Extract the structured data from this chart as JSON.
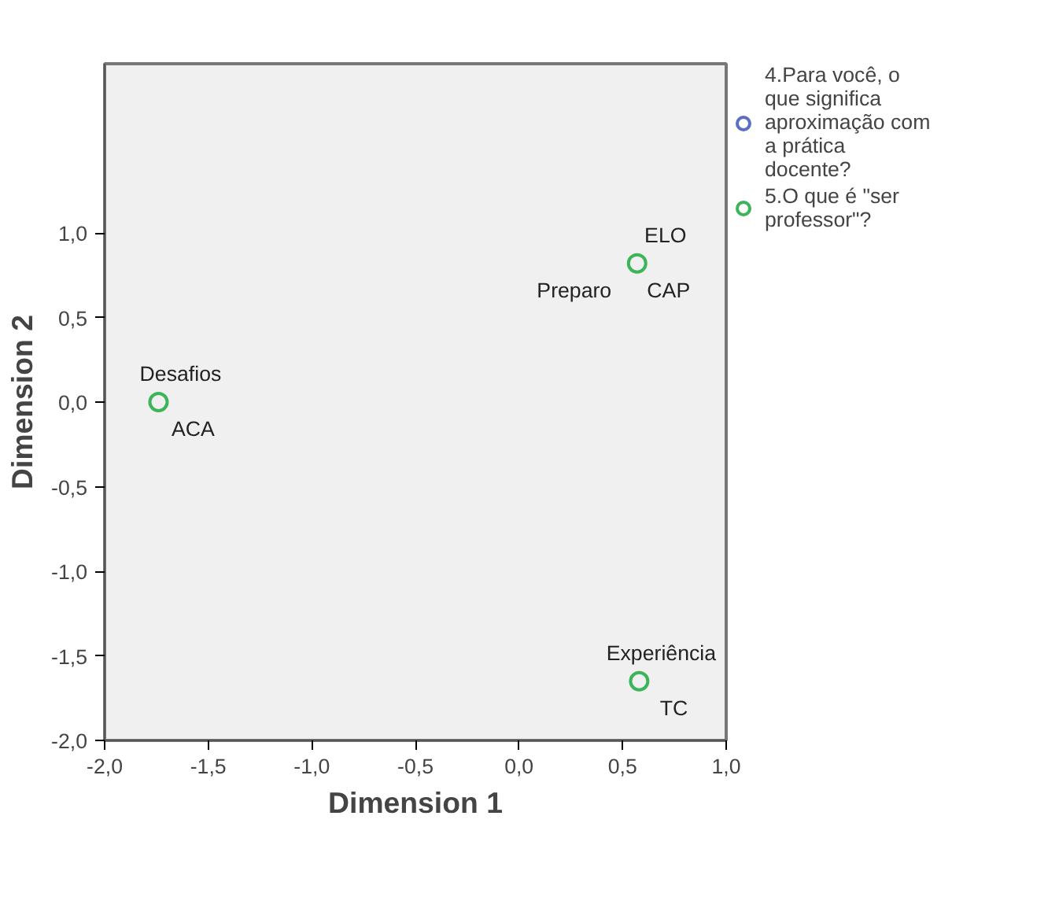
{
  "chart_data": {
    "type": "scatter",
    "xlabel": "Dimension 1",
    "ylabel": "Dimension 2",
    "x": [
      0.57,
      -1.74,
      0.58
    ],
    "series": [
      {
        "name": "4.Para você, o que significa aproximação com a prática docente?",
        "color": "#5a6fc4",
        "values": [
          null,
          null,
          null
        ]
      },
      {
        "name": "5.O que é \"ser professor\"?",
        "color": "#3cb45a",
        "values": [
          0.82,
          0.0,
          -1.65
        ]
      }
    ],
    "annotations": [
      {
        "text": "ELO",
        "x": 0.57,
        "y": 0.82
      },
      {
        "text": "Preparo",
        "x": 0.57,
        "y": 0.82
      },
      {
        "text": "CAP",
        "x": 0.57,
        "y": 0.82
      },
      {
        "text": "Desafios",
        "x": -1.74,
        "y": 0.0
      },
      {
        "text": "ACA",
        "x": -1.74,
        "y": 0.0
      },
      {
        "text": "Experiência",
        "x": 0.58,
        "y": -1.65
      },
      {
        "text": "TC",
        "x": 0.58,
        "y": -1.65
      }
    ],
    "xlim": [
      -2,
      1
    ],
    "ylim": [
      -2,
      2
    ],
    "xticks": [
      {
        "value": -2,
        "label": "-2,0"
      },
      {
        "value": -1.5,
        "label": "-1,5"
      },
      {
        "value": -1,
        "label": "-1,0"
      },
      {
        "value": -0.5,
        "label": "-0,5"
      },
      {
        "value": 0,
        "label": "0,0"
      },
      {
        "value": 0.5,
        "label": "0,5"
      },
      {
        "value": 1,
        "label": "1,0"
      }
    ],
    "yticks": [
      {
        "value": -2,
        "label": "-2,0"
      },
      {
        "value": -1.5,
        "label": "-1,5"
      },
      {
        "value": -1,
        "label": "-1,0"
      },
      {
        "value": -0.5,
        "label": "-0,5"
      },
      {
        "value": 0,
        "label": "0,0"
      },
      {
        "value": 0.5,
        "label": "0,5"
      },
      {
        "value": 1,
        "label": "1,0"
      }
    ],
    "marker": "circle",
    "grid": false,
    "legend": "top right"
  }
}
